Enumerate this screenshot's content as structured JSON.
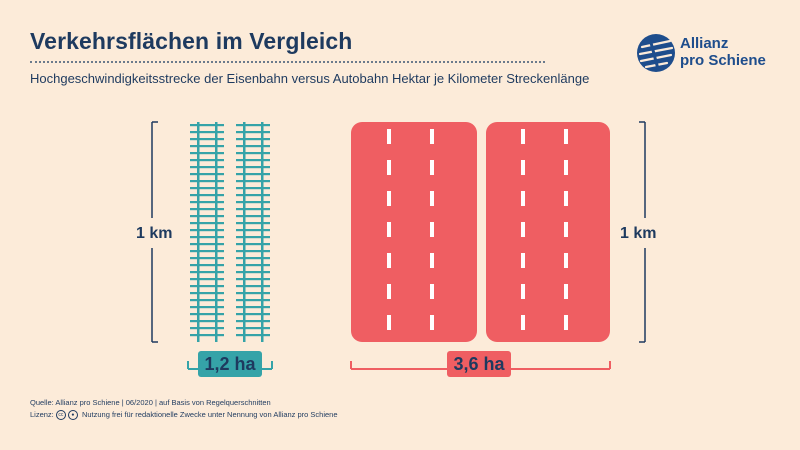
{
  "header": {
    "title": "Verkehrsflächen im Vergleich",
    "subtitle": "Hochgeschwindigkeitsstrecke der Eisenbahn versus Autobahn Hektar je Kilometer Streckenlänge"
  },
  "logo": {
    "line1": "Allianz",
    "line2": "pro Schiene"
  },
  "diagram": {
    "left_length_label": "1 km",
    "right_length_label": "1 km",
    "rail_area_label": "1,2 ha",
    "road_area_label": "3,6 ha",
    "rail_area_ha": 1.2,
    "road_area_ha": 3.6
  },
  "footer": {
    "source": "Quelle: Allianz pro Schiene | 06/2020 | auf Basis von Regelquerschnitten",
    "license_label": "Lizenz:",
    "license_text": "Nutzung frei für redaktionelle Zwecke unter Nennung von Allianz pro Schiene"
  },
  "colors": {
    "background": "#fcebd9",
    "navy": "#1e3a5f",
    "rail": "#35a3a8",
    "road": "#ef5e62",
    "logo_blue": "#1e4d8c"
  }
}
